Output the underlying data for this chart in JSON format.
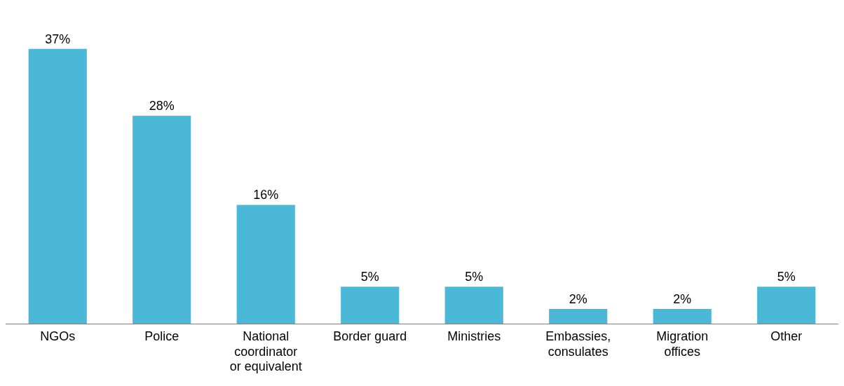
{
  "chart_data": {
    "type": "bar",
    "categories": [
      "NGOs",
      "Police",
      "National coordinator or equivalent",
      "Border guard",
      "Ministries",
      "Embassies, consulates",
      "Migration offices",
      "Other"
    ],
    "values": [
      37,
      28,
      16,
      5,
      5,
      2,
      2,
      5
    ],
    "value_labels": [
      "37%",
      "28%",
      "16%",
      "5%",
      "5%",
      "2%",
      "2%",
      "5%"
    ],
    "color": "#4ab8d6",
    "grid": false,
    "legend": false
  }
}
